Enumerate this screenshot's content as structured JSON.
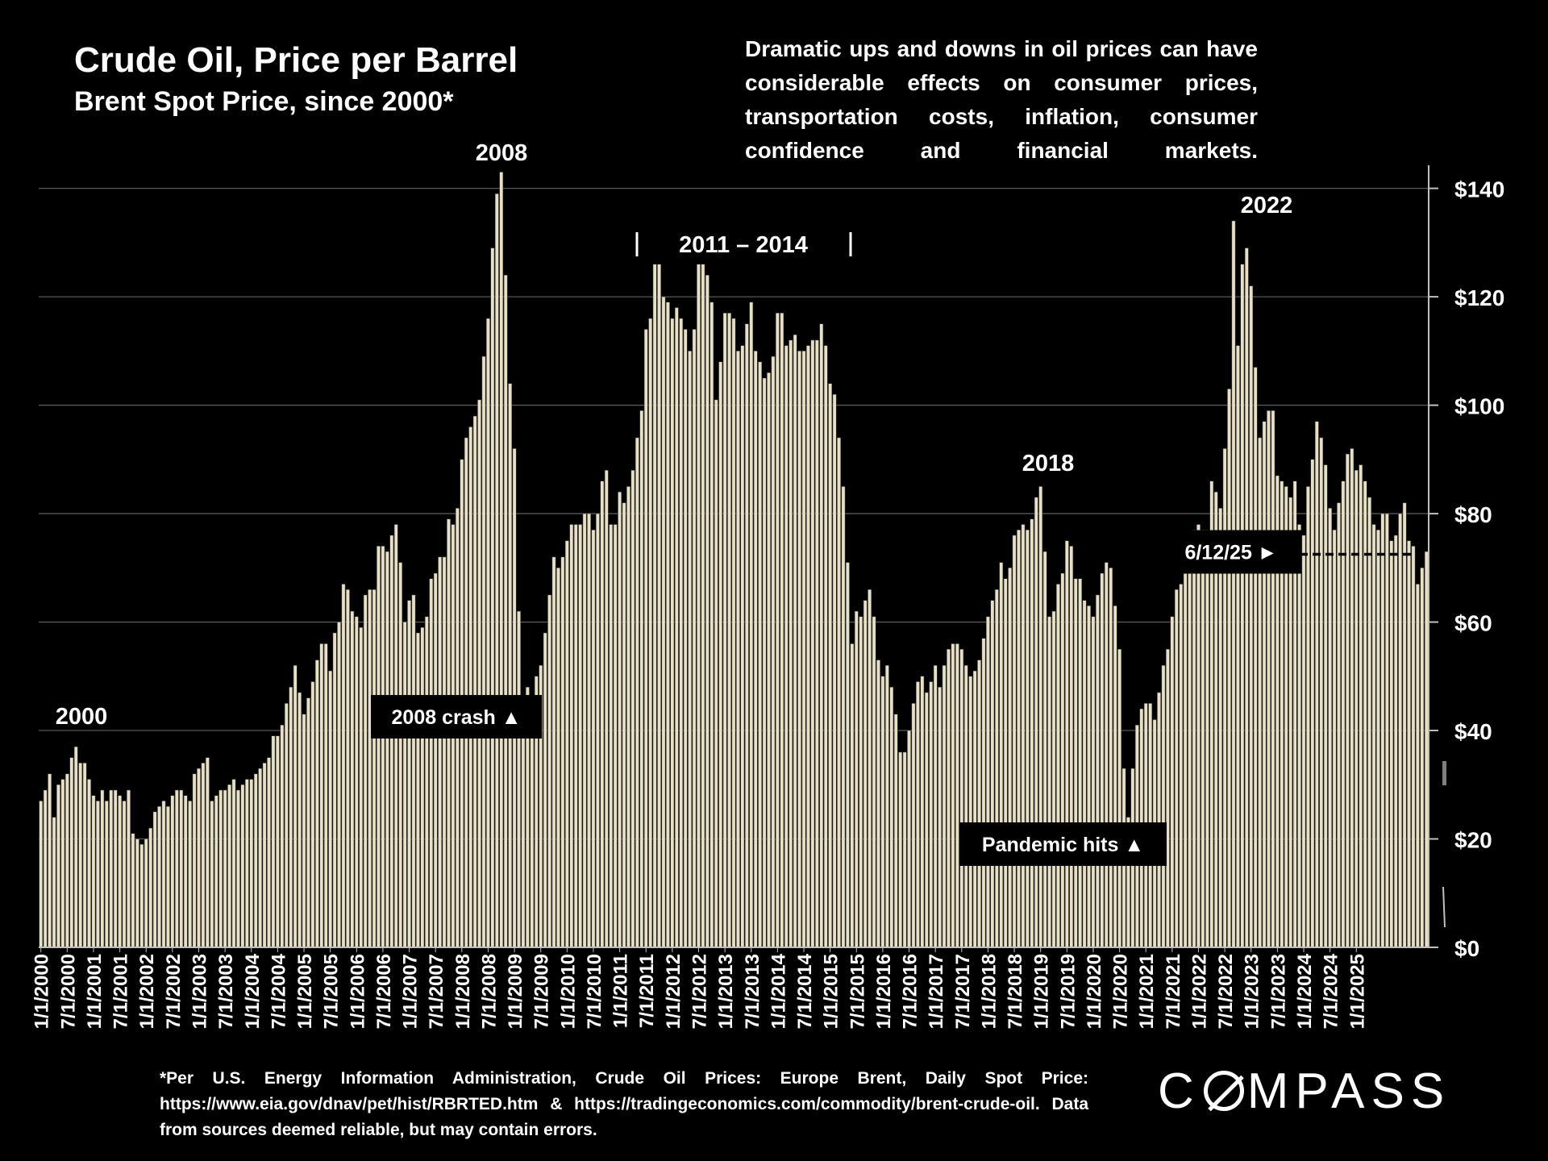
{
  "title": "Crude Oil, Price per Barrel",
  "subtitle": "Brent Spot Price, since 2000*",
  "description": "Dramatic ups and downs in oil prices can have considerable effects on consumer prices, transportation costs, inflation, consumer confidence and financial markets.",
  "footnote": "*Per U.S. Energy Information Administration, Crude Oil Prices: Europe Brent, Daily Spot Price: https://www.eia.gov/dnav/pet/hist/RBRTED.htm & https://tradingeconomics.com/commodity/brent-crude-oil. Data from sources deemed reliable, but may contain errors.",
  "logo": {
    "text_before": "C",
    "text_after": "MPASS"
  },
  "colors": {
    "background": "#000000",
    "bar": "#e8e0c4",
    "bar_outline": "#3a3a3a",
    "text": "#ffffff",
    "grid": "#595959"
  },
  "chart_data": {
    "type": "bar",
    "ylim": [
      0,
      145
    ],
    "yticks": [
      0,
      20,
      40,
      60,
      80,
      100,
      120,
      140
    ],
    "ytick_labels": [
      "$0",
      "$20",
      "$40",
      "$60",
      "$80",
      "$100",
      "$120",
      "$140"
    ],
    "x_tick_labels": [
      "1/1/2000",
      "7/1/2000",
      "1/1/2001",
      "7/1/2001",
      "1/1/2002",
      "7/1/2002",
      "1/1/2003",
      "7/1/2003",
      "1/1/2004",
      "7/1/2004",
      "1/1/2005",
      "7/1/2005",
      "1/1/2006",
      "7/1/2006",
      "1/1/2007",
      "7/1/2007",
      "1/1/2008",
      "7/1/2008",
      "1/1/2009",
      "7/1/2009",
      "1/1/2010",
      "7/1/2010",
      "1/1/2011",
      "7/1/2011",
      "1/1/2012",
      "7/1/2012",
      "1/1/2013",
      "7/1/2013",
      "1/1/2014",
      "7/1/2014",
      "1/1/2015",
      "7/1/2015",
      "1/1/2016",
      "7/1/2016",
      "1/1/2017",
      "7/1/2017",
      "1/1/2018",
      "7/1/2018",
      "1/1/2019",
      "7/1/2019",
      "1/1/2020",
      "7/1/2020",
      "1/1/2021",
      "7/1/2021",
      "1/1/2022",
      "7/1/2022",
      "1/1/2023",
      "7/1/2023",
      "1/1/2024",
      "7/1/2024",
      "1/1/2025"
    ],
    "start_date": "1/1/2000",
    "series": [
      {
        "values": [
          27,
          29,
          32,
          24,
          30,
          31,
          32,
          35,
          37,
          34,
          34,
          31,
          28,
          27,
          29,
          27,
          29,
          29,
          28,
          27,
          29,
          21,
          20,
          19,
          20,
          22,
          25,
          26,
          27,
          26,
          28,
          29,
          29,
          28,
          27,
          32,
          33,
          34,
          35,
          27,
          28,
          29,
          29,
          30,
          31,
          29,
          30,
          31,
          31,
          32,
          33,
          34,
          35,
          39,
          39,
          41,
          45,
          48,
          52,
          47,
          43,
          46,
          49,
          53,
          56,
          56,
          51,
          58,
          60,
          67,
          66,
          62,
          61,
          59,
          65,
          66,
          66,
          74,
          74,
          73,
          76,
          78,
          71,
          60,
          64,
          65,
          58,
          59,
          61,
          68,
          69,
          72,
          72,
          79,
          78,
          81,
          90,
          94,
          96,
          98,
          101,
          109,
          116,
          129,
          139,
          143,
          124,
          104,
          92,
          62,
          45,
          48,
          46,
          50,
          52,
          58,
          65,
          72,
          70,
          72,
          75,
          78,
          78,
          78,
          80,
          80,
          77,
          80,
          86,
          88,
          78,
          78,
          84,
          82,
          85,
          88,
          94,
          99,
          114,
          116,
          126,
          126,
          120,
          119,
          116,
          118,
          116,
          114,
          110,
          114,
          126,
          126,
          124,
          119,
          101,
          108,
          117,
          117,
          116,
          110,
          111,
          115,
          119,
          110,
          108,
          105,
          106,
          109,
          117,
          117,
          111,
          112,
          113,
          110,
          110,
          111,
          112,
          112,
          115,
          111,
          104,
          102,
          94,
          85,
          71,
          56,
          62,
          61,
          64,
          66,
          61,
          53,
          50,
          52,
          48,
          43,
          36,
          36,
          40,
          45,
          49,
          50,
          47,
          49,
          52,
          48,
          52,
          55,
          56,
          56,
          55,
          52,
          50,
          51,
          53,
          57,
          61,
          64,
          66,
          71,
          68,
          70,
          76,
          77,
          78,
          77,
          79,
          83,
          85,
          73,
          61,
          62,
          67,
          69,
          75,
          74,
          68,
          68,
          64,
          63,
          61,
          65,
          69,
          71,
          70,
          63,
          55,
          33,
          24,
          33,
          41,
          44,
          45,
          45,
          42,
          47,
          52,
          55,
          61,
          66,
          67,
          73,
          75,
          77,
          78,
          77,
          77,
          86,
          84,
          81,
          92,
          103,
          134,
          111,
          126,
          129,
          122,
          107,
          94,
          97,
          99,
          99,
          87,
          86,
          85,
          83,
          86,
          78,
          76,
          85,
          90,
          97,
          94,
          89,
          81,
          77,
          82,
          86,
          91,
          92,
          88,
          89,
          86,
          83,
          78,
          77,
          80,
          80,
          75,
          76,
          80,
          82,
          75,
          74,
          67,
          70,
          73
        ]
      }
    ],
    "annotations": {
      "y2000": "2000",
      "y2008": "2008",
      "y2018": "2018",
      "y2022": "2022",
      "period": "2011 – 2014",
      "crash": "2008 crash ▲",
      "pandemic": "Pandemic hits ▲",
      "current": "6/12/25 ►"
    },
    "current_price": 72.5
  }
}
